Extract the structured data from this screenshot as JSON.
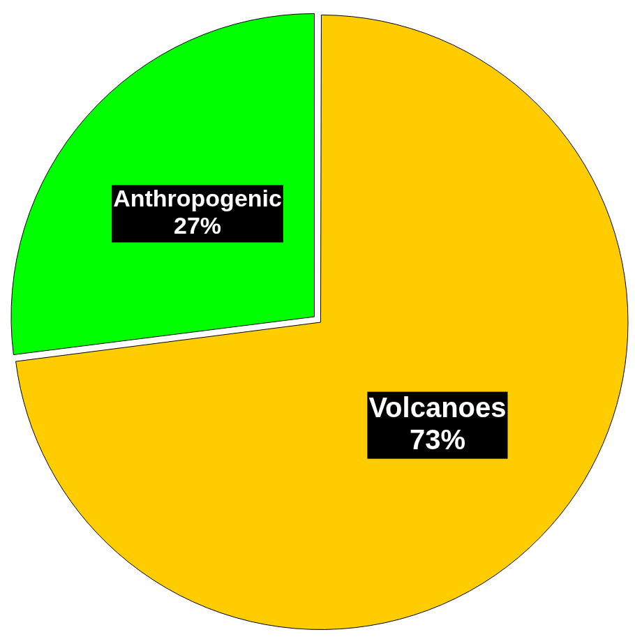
{
  "chart_data": {
    "type": "pie",
    "categories": [
      "Volcanoes",
      "Anthropogenic"
    ],
    "values": [
      73,
      27
    ],
    "value_labels": [
      "73%",
      "27%"
    ],
    "colors": [
      "#ffcc00",
      "#00ff00"
    ],
    "data_labels": true
  }
}
